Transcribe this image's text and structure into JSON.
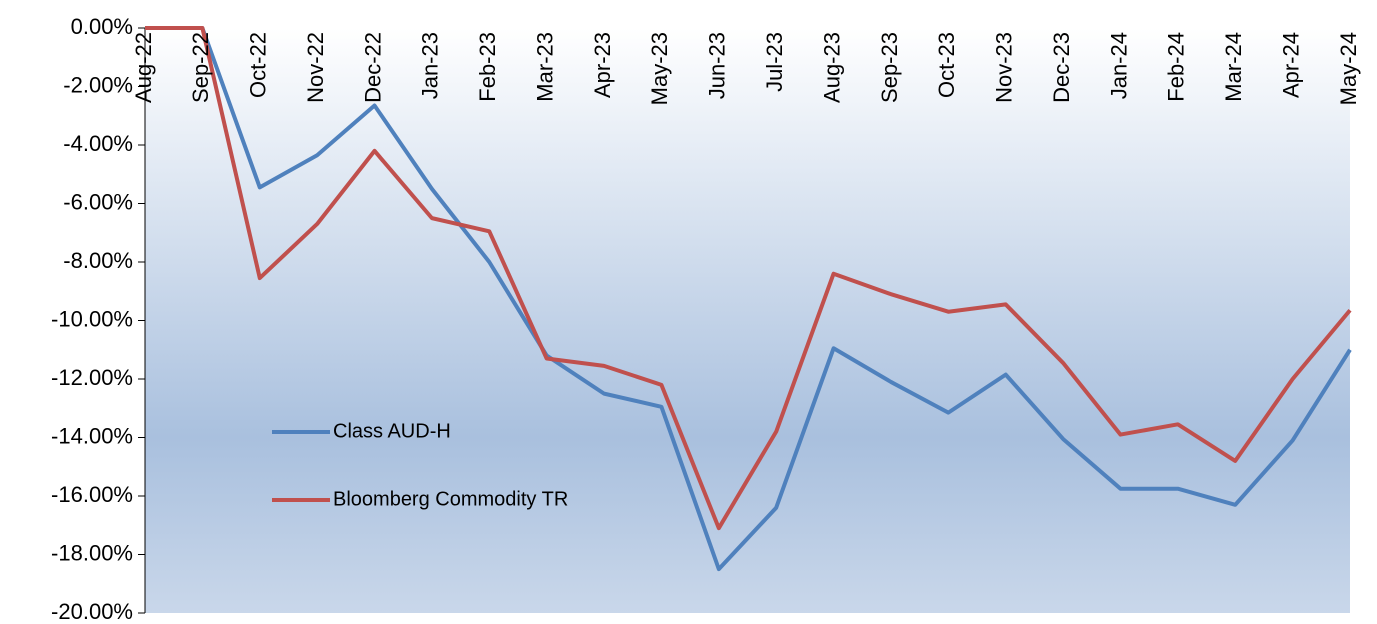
{
  "chart_data": {
    "type": "line",
    "categories": [
      "Aug-22",
      "Sep-22",
      "Oct-22",
      "Nov-22",
      "Dec-22",
      "Jan-23",
      "Feb-23",
      "Mar-23",
      "Apr-23",
      "May-23",
      "Jun-23",
      "Jul-23",
      "Aug-23",
      "Sep-23",
      "Oct-23",
      "Nov-23",
      "Dec-23",
      "Jan-24",
      "Feb-24",
      "Mar-24",
      "Apr-24",
      "May-24"
    ],
    "series": [
      {
        "name": "Class AUD-H",
        "color": "#4f81bd",
        "values": [
          0,
          0,
          -5.45,
          -4.35,
          -2.65,
          -5.5,
          -8.0,
          -11.2,
          -12.5,
          -12.95,
          -18.5,
          -16.4,
          -10.95,
          -12.1,
          -13.15,
          -11.85,
          -14.05,
          -15.75,
          -15.75,
          -16.3,
          -14.1,
          -11.0
        ]
      },
      {
        "name": "Bloomberg Commodity TR",
        "color": "#c0504d",
        "values": [
          0,
          0,
          -8.55,
          -6.7,
          -4.2,
          -6.5,
          -6.95,
          -11.3,
          -11.55,
          -12.2,
          -17.1,
          -13.8,
          -8.4,
          -9.1,
          -9.7,
          -9.45,
          -11.45,
          -13.9,
          -13.55,
          -14.8,
          -12.0,
          -9.65
        ]
      }
    ],
    "ylim": [
      -20,
      0
    ],
    "yticks": [
      {
        "value": 0,
        "label": "0.00%"
      },
      {
        "value": -2,
        "label": "-2.00%"
      },
      {
        "value": -4,
        "label": "-4.00%"
      },
      {
        "value": -6,
        "label": "-6.00%"
      },
      {
        "value": -8,
        "label": "-8.00%"
      },
      {
        "value": -10,
        "label": "-10.00%"
      },
      {
        "value": -12,
        "label": "-12.00%"
      },
      {
        "value": -14,
        "label": "-14.00%"
      },
      {
        "value": -16,
        "label": "-16.00%"
      },
      {
        "value": -18,
        "label": "-18.00%"
      },
      {
        "value": -20,
        "label": "-20.00%"
      }
    ],
    "legend": "left"
  }
}
